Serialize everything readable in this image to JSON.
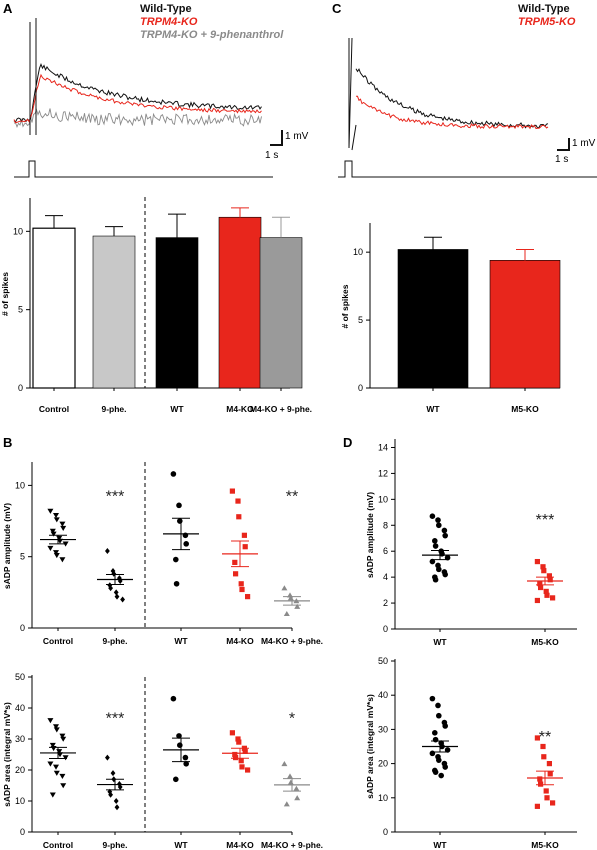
{
  "panel_labels": {
    "A": "A",
    "B": "B",
    "C": "C",
    "D": "D"
  },
  "trace_a": {
    "legend": [
      {
        "label": "Wild-Type",
        "color": "#111111",
        "italic": false
      },
      {
        "label": "TRPM4-KO",
        "color": "#e8261c",
        "italic": true
      },
      {
        "label": "TRPM4-KO + 9-phenanthrol",
        "color": "#8a8a8a",
        "italic": true
      }
    ],
    "scale_v": "1 mV",
    "scale_t": "1 s"
  },
  "trace_c": {
    "legend": [
      {
        "label": "Wild-Type",
        "color": "#111111",
        "italic": false
      },
      {
        "label": "TRPM5-KO",
        "color": "#e8261c",
        "italic": true
      }
    ],
    "scale_v": "1 mV",
    "scale_t": "1 s"
  },
  "chart_data": [
    {
      "id": "A-bar",
      "type": "bar",
      "ylabel": "# of spikes",
      "ylim": [
        0,
        12
      ],
      "yticks": [
        "0",
        "5",
        "10"
      ],
      "categories": [
        "Control",
        "9-phe.",
        "WT",
        "M4-KO",
        "M4-KO + 9-phe."
      ],
      "values": [
        10.2,
        9.7,
        9.6,
        10.9,
        9.6
      ],
      "errors": [
        0.8,
        0.6,
        1.5,
        0.6,
        1.3
      ],
      "colors": [
        "#ffffff",
        "#c8c8c8",
        "#000000",
        "#e8261c",
        "#9a9a9a"
      ],
      "divider_after": 1
    },
    {
      "id": "C-bar",
      "type": "bar",
      "ylabel": "# of spikes",
      "ylim": [
        0,
        12
      ],
      "yticks": [
        "0",
        "5",
        "10"
      ],
      "categories": [
        "WT",
        "M5-KO"
      ],
      "values": [
        10.2,
        9.4
      ],
      "errors": [
        0.9,
        0.8
      ],
      "colors": [
        "#000000",
        "#e8261c"
      ]
    },
    {
      "id": "B-amp",
      "type": "scatter",
      "ylabel": "sADP amplitude (mV)",
      "ylim": [
        0,
        11.5
      ],
      "yticks": [
        "0",
        "5",
        "10"
      ],
      "categories": [
        "Control",
        "9-phe.",
        "WT",
        "M4-KO",
        "M4-KO + 9-phe."
      ],
      "divider_after": 1,
      "series": [
        {
          "points": [
            8.2,
            7.9,
            7.6,
            7.3,
            7.0,
            6.8,
            6.6,
            6.3,
            6.1,
            5.9,
            5.6,
            5.3,
            5.1,
            4.8
          ],
          "mean": 6.2,
          "sem": 0.3,
          "marker": "tri-down",
          "color": "#000000"
        },
        {
          "points": [
            5.4,
            4.0,
            3.8,
            3.5,
            3.3,
            3.0,
            2.8,
            2.5,
            2.2,
            2.0
          ],
          "mean": 3.4,
          "sem": 0.35,
          "marker": "diamond",
          "color": "#000000"
        },
        {
          "points": [
            10.8,
            8.6,
            7.5,
            6.5,
            5.9,
            4.8,
            3.1
          ],
          "mean": 6.6,
          "sem": 1.1,
          "marker": "circle",
          "color": "#000000"
        },
        {
          "points": [
            9.6,
            8.9,
            7.8,
            6.5,
            5.7,
            4.6,
            3.8,
            3.1,
            2.7,
            2.2
          ],
          "mean": 5.2,
          "sem": 0.9,
          "marker": "square",
          "color": "#e8261c"
        },
        {
          "points": [
            2.8,
            2.3,
            2.1,
            1.9,
            1.5,
            1.0
          ],
          "mean": 1.9,
          "sem": 0.3,
          "marker": "tri-up",
          "color": "#8a8a8a"
        }
      ],
      "significance": [
        {
          "index": 1,
          "label": "***",
          "y": 9.3
        },
        {
          "index": 4,
          "label": "**",
          "y": 9.3
        }
      ]
    },
    {
      "id": "B-area",
      "type": "scatter",
      "ylabel": "sADP area (integral mV*s)",
      "ylim": [
        0,
        50
      ],
      "yticks": [
        "0",
        "10",
        "20",
        "30",
        "40",
        "50"
      ],
      "categories": [
        "Control",
        "9-phe.",
        "WT",
        "M4-KO",
        "M4-KO + 9-phe."
      ],
      "divider_after": 1,
      "series": [
        {
          "points": [
            36,
            34,
            33,
            31,
            30,
            28,
            27,
            26,
            25,
            24,
            22,
            21,
            19,
            18,
            15,
            12
          ],
          "mean": 25.5,
          "sem": 1.8,
          "marker": "tri-down",
          "color": "#000000"
        },
        {
          "points": [
            24,
            19,
            17,
            15.5,
            14.5,
            13,
            12,
            10,
            8
          ],
          "mean": 15.3,
          "sem": 1.7,
          "marker": "diamond",
          "color": "#000000"
        },
        {
          "points": [
            43,
            31,
            28,
            24,
            22,
            17
          ],
          "mean": 26.5,
          "sem": 3.8,
          "marker": "circle",
          "color": "#000000"
        },
        {
          "points": [
            32,
            30,
            29,
            27,
            26,
            25,
            24,
            23,
            21,
            20
          ],
          "mean": 25.4,
          "sem": 1.6,
          "marker": "square",
          "color": "#e8261c"
        },
        {
          "points": [
            22,
            18,
            16,
            14,
            11,
            9
          ],
          "mean": 15.2,
          "sem": 2.0,
          "marker": "tri-up",
          "color": "#8a8a8a"
        }
      ],
      "significance": [
        {
          "index": 1,
          "label": "***",
          "y": 37
        },
        {
          "index": 4,
          "label": "*",
          "y": 37
        }
      ]
    },
    {
      "id": "D-amp",
      "type": "scatter",
      "ylabel": "sADP amplitude (mV)",
      "ylim": [
        0,
        14.5
      ],
      "yticks": [
        "0",
        "2",
        "4",
        "6",
        "8",
        "10",
        "12",
        "14"
      ],
      "categories": [
        "WT",
        "M5-KO"
      ],
      "series": [
        {
          "points": [
            8.7,
            8.4,
            8.0,
            7.6,
            7.2,
            6.8,
            6.4,
            6.0,
            5.8,
            5.5,
            5.2,
            4.9,
            4.6,
            4.4,
            4.2,
            4.0,
            3.8
          ],
          "mean": 5.7,
          "sem": 0.35,
          "marker": "circle",
          "color": "#000000"
        },
        {
          "points": [
            5.2,
            4.8,
            4.5,
            4.1,
            3.8,
            3.5,
            3.2,
            2.9,
            2.6,
            2.4,
            2.2
          ],
          "mean": 3.7,
          "sem": 0.3,
          "marker": "square",
          "color": "#e8261c"
        }
      ],
      "significance": [
        {
          "index": 1,
          "label": "***",
          "y": 8.5
        }
      ]
    },
    {
      "id": "D-area",
      "type": "scatter",
      "ylabel": "sADP area (integral mV*s)",
      "ylim": [
        0,
        50
      ],
      "yticks": [
        "0",
        "10",
        "20",
        "30",
        "40",
        "50"
      ],
      "categories": [
        "WT",
        "M5-KO"
      ],
      "series": [
        {
          "points": [
            39,
            37,
            34,
            32,
            31,
            29,
            27,
            26,
            25,
            24,
            23,
            22,
            21,
            20,
            19,
            18,
            17.5,
            16.5
          ],
          "mean": 25,
          "sem": 1.6,
          "marker": "circle",
          "color": "#000000"
        },
        {
          "points": [
            27.5,
            25,
            22,
            20,
            17,
            15.5,
            14,
            12,
            10,
            8.5,
            7.5
          ],
          "mean": 15.8,
          "sem": 2.0,
          "marker": "square",
          "color": "#e8261c"
        }
      ],
      "significance": [
        {
          "index": 1,
          "label": "**",
          "y": 28
        }
      ]
    }
  ]
}
